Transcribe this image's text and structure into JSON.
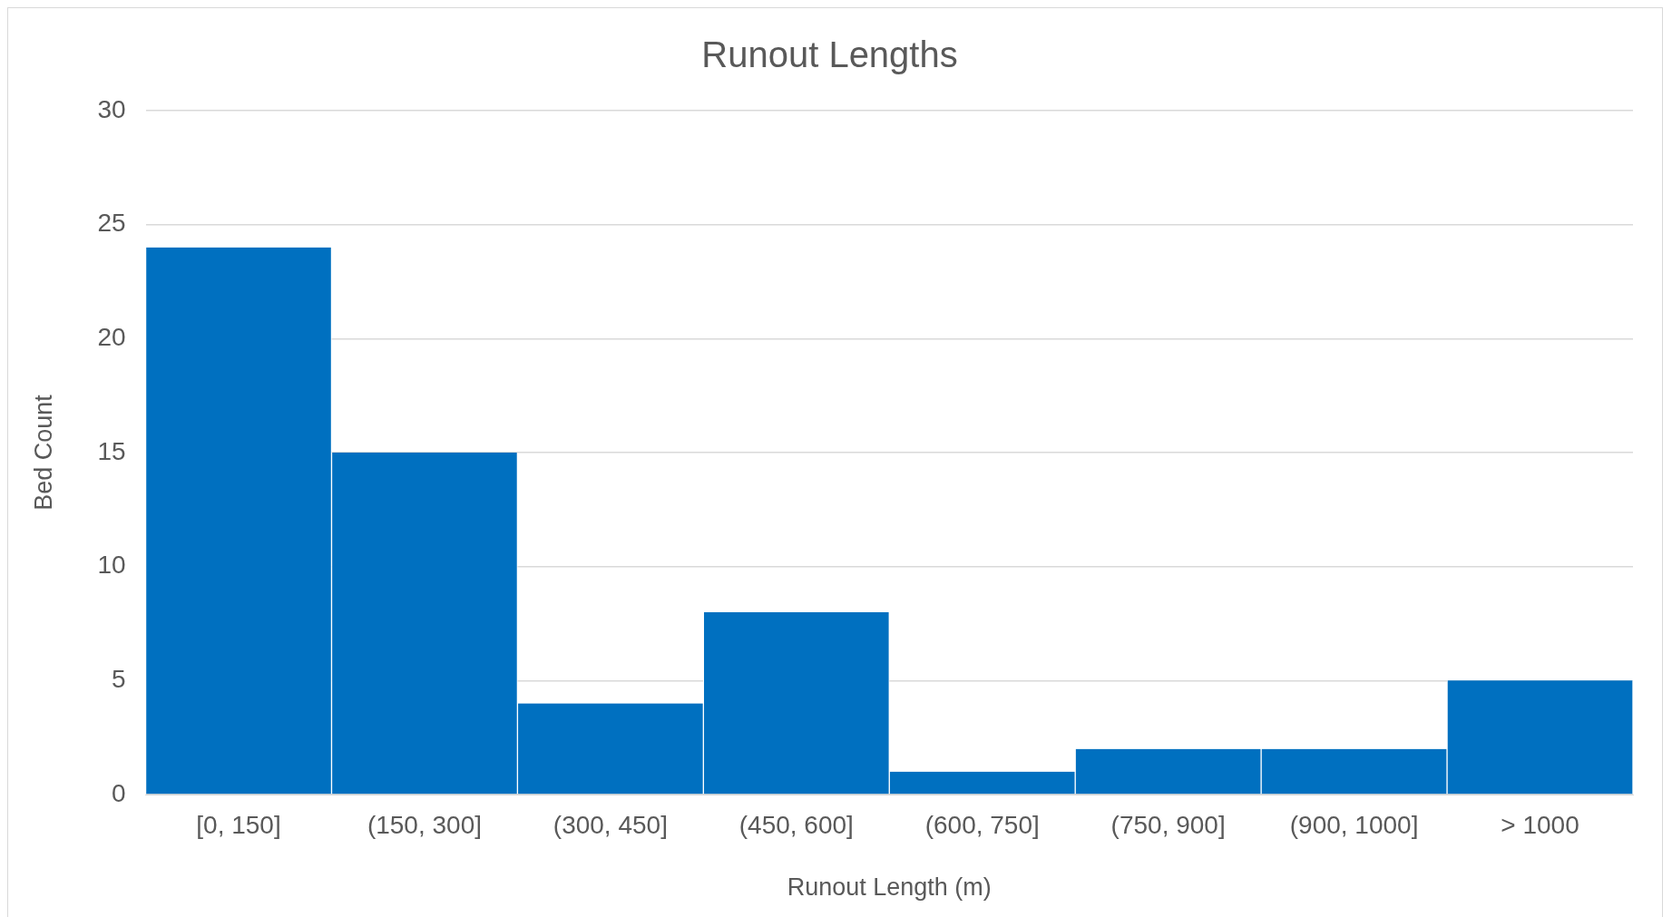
{
  "chart_data": {
    "type": "bar",
    "title": "Runout Lengths",
    "xlabel": "Runout Length (m)",
    "ylabel": "Bed Count",
    "categories": [
      "[0, 150]",
      "(150, 300]",
      "(300, 450]",
      "(450, 600]",
      "(600, 750]",
      "(750, 900]",
      "(900, 1000]",
      "> 1000"
    ],
    "values": [
      24,
      15,
      4,
      8,
      1,
      2,
      2,
      5
    ],
    "color": "#0070c0",
    "ylim": [
      0,
      30
    ],
    "yticks": [
      0,
      5,
      10,
      15,
      20,
      25,
      30
    ],
    "grid": "y",
    "legend": false
  }
}
